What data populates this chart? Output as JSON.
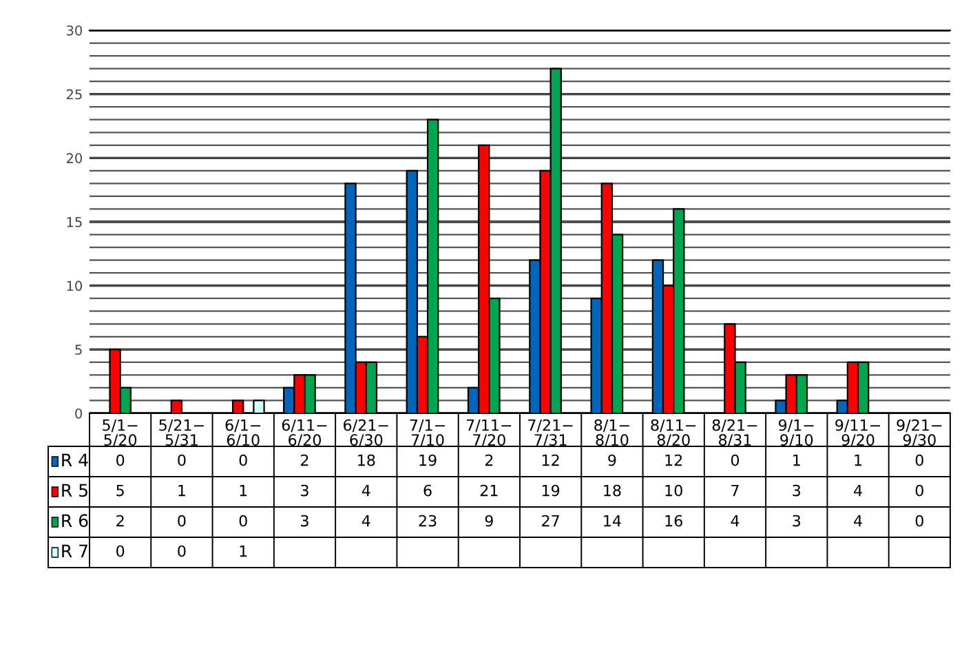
{
  "chart_data": {
    "type": "bar",
    "categories": [
      "5/1−\n5/20",
      "5/21−\n5/31",
      "6/1−\n6/10",
      "6/11−\n6/20",
      "6/21−\n6/30",
      "7/1−\n7/10",
      "7/11−\n7/20",
      "7/21−\n7/31",
      "8/1−\n8/10",
      "8/11−\n8/20",
      "8/21−\n8/31",
      "9/1−\n9/10",
      "9/11−\n9/20",
      "9/21−\n9/30"
    ],
    "series": [
      {
        "name": "R 4",
        "color": "#0066bb",
        "values": [
          0,
          0,
          0,
          2,
          18,
          19,
          2,
          12,
          9,
          12,
          0,
          1,
          1,
          0
        ]
      },
      {
        "name": "R 5",
        "color": "#ff0000",
        "values": [
          5,
          1,
          1,
          3,
          4,
          6,
          21,
          19,
          18,
          10,
          7,
          3,
          4,
          0
        ]
      },
      {
        "name": "R 6",
        "color": "#00a550",
        "values": [
          2,
          0,
          0,
          3,
          4,
          23,
          9,
          27,
          14,
          16,
          4,
          3,
          4,
          0
        ]
      },
      {
        "name": "R 7",
        "color": "#ccffff",
        "values": [
          0,
          0,
          1,
          null,
          null,
          null,
          null,
          null,
          null,
          null,
          null,
          null,
          null,
          null
        ]
      }
    ],
    "ylim": [
      0,
      30
    ],
    "yticks": [
      0,
      {
        "value": 1,
        "label": null
      },
      {
        "value": 2,
        "label": null
      },
      {
        "value": 3,
        "label": null
      },
      {
        "value": 4,
        "label": null
      },
      5,
      {
        "value": 6,
        "label": null
      },
      {
        "value": 7,
        "label": null
      },
      {
        "value": 8,
        "label": null
      },
      {
        "value": 9,
        "label": null
      },
      10,
      {
        "value": 11,
        "label": null
      },
      {
        "value": 12,
        "label": null
      },
      {
        "value": 13,
        "label": null
      },
      {
        "value": 14,
        "label": null
      },
      15,
      {
        "value": 16,
        "label": null
      },
      {
        "value": 17,
        "label": null
      },
      {
        "value": 18,
        "label": null
      },
      {
        "value": 19,
        "label": null
      },
      20,
      {
        "value": 21,
        "label": null
      },
      {
        "value": 22,
        "label": null
      },
      {
        "value": 23,
        "label": null
      },
      {
        "value": 24,
        "label": null
      },
      25,
      {
        "value": 26,
        "label": null
      },
      {
        "value": 27,
        "label": null
      },
      {
        "value": 28,
        "label": null
      },
      {
        "value": 29,
        "label": null
      },
      30
    ],
    "grid": "y",
    "data_labels": true,
    "legend": "bottom"
  }
}
